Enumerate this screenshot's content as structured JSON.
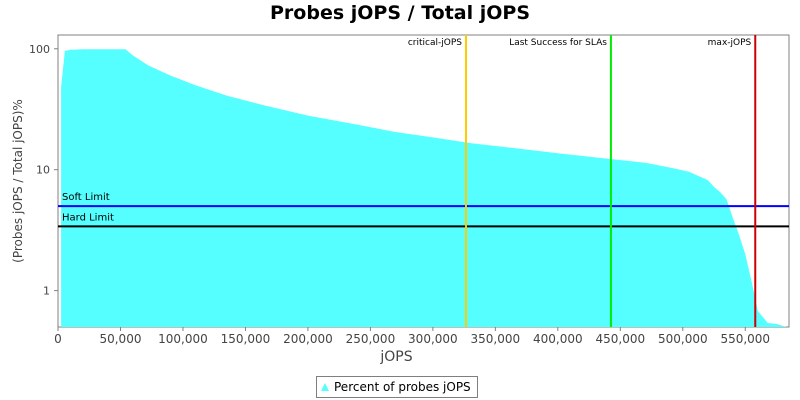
{
  "chart_data": {
    "type": "area",
    "title": "Probes jOPS / Total jOPS",
    "xlabel": "jOPS",
    "ylabel": "(Probes jOPS / Total jOPS)%",
    "y_scale": "log",
    "xlim": [
      0,
      585000
    ],
    "ylim": [
      0.5,
      130
    ],
    "x_ticks": [
      0,
      50000,
      100000,
      150000,
      200000,
      250000,
      300000,
      350000,
      400000,
      450000,
      500000,
      550000
    ],
    "x_tick_labels": [
      "0",
      "50,000",
      "100,000",
      "150,000",
      "200,000",
      "250,000",
      "300,000",
      "350,000",
      "400,000",
      "450,000",
      "500,000",
      "550,000"
    ],
    "y_ticks": [
      1,
      10,
      100
    ],
    "y_tick_labels": [
      "1",
      "10",
      "100"
    ],
    "fill_color": "#55ffff",
    "series": [
      {
        "name": "Percent of probes jOPS",
        "x": [
          2500,
          5500,
          10000,
          20000,
          54000,
          60000,
          72000,
          90000,
          110000,
          135000,
          165000,
          200000,
          240000,
          270000,
          300000,
          330000,
          360000,
          400000,
          440000,
          470000,
          490000,
          505000,
          520000,
          525000,
          530000,
          535000,
          540000,
          545000,
          550000,
          555000,
          560000,
          568000,
          575000,
          583000
        ],
        "y": [
          48,
          96,
          98,
          99,
          99,
          88,
          73,
          60,
          50,
          41,
          34,
          28,
          23.5,
          20.5,
          18.5,
          16.6,
          15.3,
          13.7,
          12.3,
          11.4,
          10.4,
          9.6,
          8.2,
          7.2,
          6.5,
          5.7,
          4.0,
          2.9,
          2.0,
          1.2,
          0.68,
          0.54,
          0.53,
          0.5
        ]
      }
    ],
    "vertical_markers": [
      {
        "label": "critical-jOPS",
        "x": 326500,
        "color": "#ffcc00"
      },
      {
        "label": "Last Success for SLAs",
        "x": 442500,
        "color": "#00ee00"
      },
      {
        "label": "max-jOPS",
        "x": 558000,
        "color": "#cc0000"
      }
    ],
    "horizontal_markers": [
      {
        "label": "Soft Limit",
        "y": 5.0,
        "color": "#0000ff"
      },
      {
        "label": "Hard Limit",
        "y": 3.4,
        "color": "#000000"
      }
    ],
    "legend": {
      "position": "bottom",
      "entries": [
        "Percent of probes jOPS"
      ]
    }
  }
}
